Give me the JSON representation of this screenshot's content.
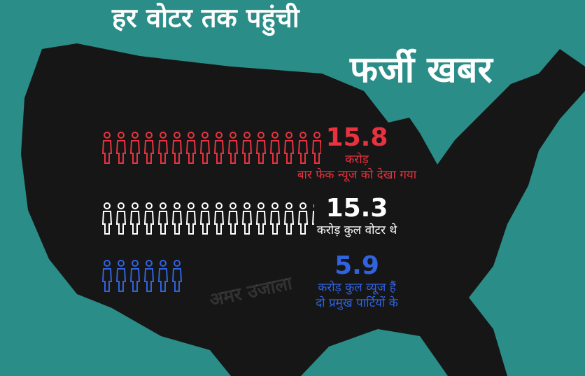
{
  "chart_data": {
    "type": "pictograph",
    "title": "हर वोटर तक पहुंची",
    "subtitle": "फर्जी खबर",
    "watermark": "अमर उजाला",
    "rows": [
      {
        "value": 15.8,
        "color": "#e8323f",
        "label_lines": [
          "करोड़",
          "बार फेक न्यूज को देखा गया"
        ]
      },
      {
        "value": 15.3,
        "color": "#ffffff",
        "label_lines": [
          "करोड़ कुल वोटर थे"
        ]
      },
      {
        "value": 5.9,
        "color": "#2f63e0",
        "label_lines": [
          "करोड़ कुल व्यूज हैं",
          "दो प्रमुख पार्टियों के"
        ]
      }
    ]
  }
}
